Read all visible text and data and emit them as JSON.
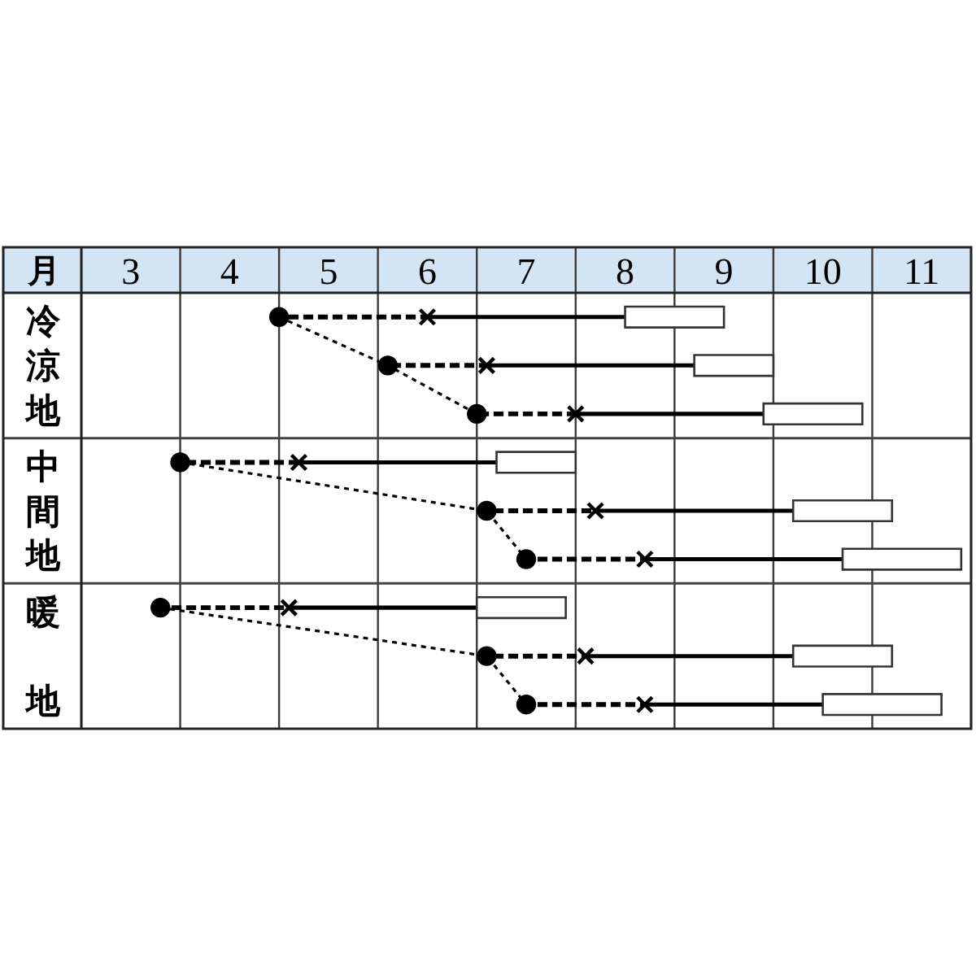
{
  "chart_data": {
    "type": "bar",
    "orientation": "horizontal",
    "xlabel": "月",
    "categories": [
      null,
      "冷涼地",
      null,
      null,
      "中間地",
      null,
      null,
      "暖地",
      null
    ],
    "xlim": [
      3,
      12
    ],
    "xticks": [
      {
        "value": 3,
        "label": null
      },
      {
        "value": 3.5,
        "label": "3"
      },
      {
        "value": 4,
        "label": null
      },
      {
        "value": 4.5,
        "label": "4"
      },
      {
        "value": 5,
        "label": null
      },
      {
        "value": 5.5,
        "label": "5"
      },
      {
        "value": 6,
        "label": null
      },
      {
        "value": 6.5,
        "label": "6"
      },
      {
        "value": 7,
        "label": null
      },
      {
        "value": 7.5,
        "label": "7"
      },
      {
        "value": 8,
        "label": null
      },
      {
        "value": 8.5,
        "label": "8"
      },
      {
        "value": 9,
        "label": null
      },
      {
        "value": 9.5,
        "label": "9"
      },
      {
        "value": 10,
        "label": null
      },
      {
        "value": 10.5,
        "label": "10"
      },
      {
        "value": 11,
        "label": null
      },
      {
        "value": 11.5,
        "label": "11"
      },
      {
        "value": 12,
        "label": null
      }
    ],
    "grid": "x",
    "series": [
      {
        "color": "#000000",
        "line_style": "dashed",
        "base": [
          5.0,
          6.1,
          7.0,
          4.0,
          7.1,
          7.5,
          3.8,
          7.1,
          7.5
        ],
        "values": [
          1.5,
          1.0,
          1.0,
          1.2,
          1.1,
          1.2,
          1.3,
          1.0,
          1.2
        ]
      },
      {
        "color": "#000000",
        "line_style": "solid",
        "base": [
          6.5,
          7.1,
          8.0,
          5.2,
          8.2,
          8.7,
          5.1,
          8.1,
          8.7
        ],
        "values": [
          2.0,
          2.1,
          1.9,
          2.0,
          2.0,
          2.0,
          1.9,
          2.1,
          1.8
        ]
      },
      {
        "color": "#ffffff",
        "base": [
          8.5,
          9.2,
          9.9,
          7.2,
          10.2,
          10.7,
          7.0,
          10.2,
          10.5
        ],
        "values": [
          1.0,
          0.8,
          1.0,
          0.8,
          1.0,
          1.2,
          0.9,
          1.0,
          1.2
        ]
      },
      {
        "type": "line",
        "color": "#000000",
        "line_style": "dotted",
        "marker": "circle",
        "values": [
          5.0,
          6.1,
          7.0,
          null,
          null,
          null,
          null,
          null,
          null
        ]
      },
      {
        "type": "line",
        "color": "#000000",
        "line_style": "dotted",
        "marker": "circle",
        "values": [
          null,
          null,
          null,
          4.0,
          7.1,
          7.5,
          null,
          null,
          null
        ]
      },
      {
        "type": "line",
        "color": "#000000",
        "line_style": "dotted",
        "marker": "circle",
        "values": [
          null,
          null,
          null,
          null,
          null,
          null,
          3.8,
          7.1,
          7.5
        ]
      },
      {
        "type": "scatter",
        "color": "#000000",
        "marker": "cross",
        "values": [
          6.5,
          7.1,
          8.0,
          5.2,
          8.2,
          8.7,
          5.1,
          8.1,
          8.7
        ]
      }
    ]
  }
}
